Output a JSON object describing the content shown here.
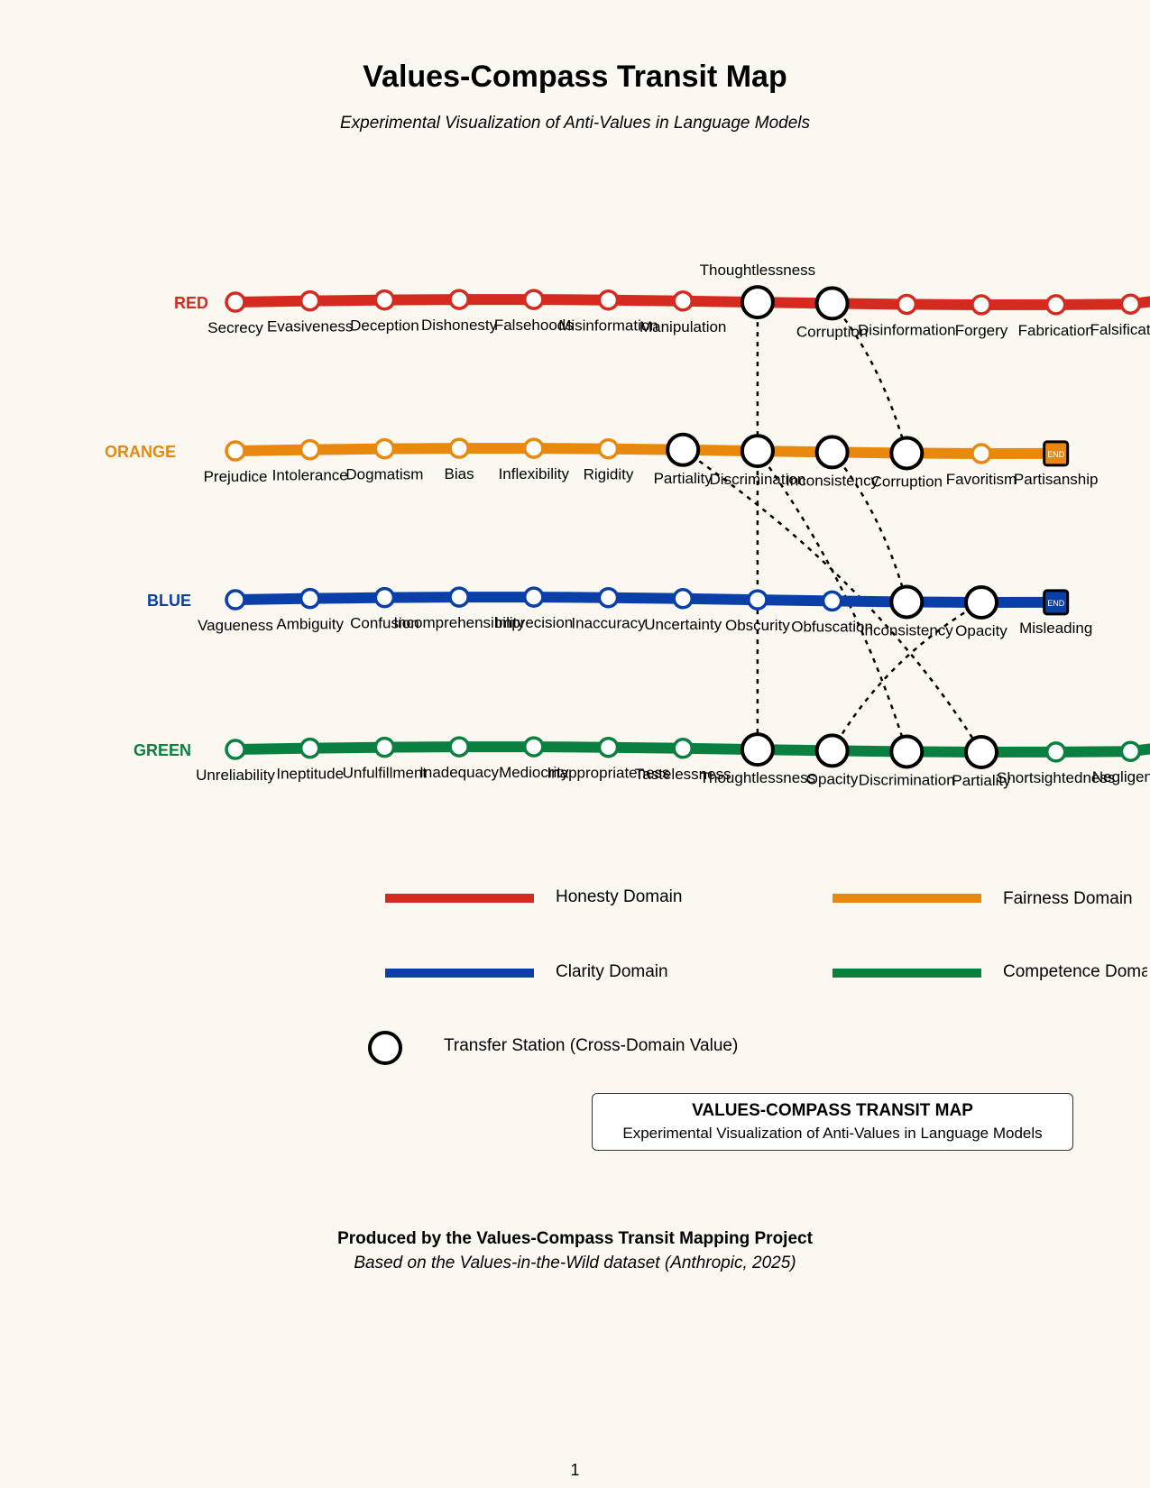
{
  "header": {
    "title": "Values-Compass Transit Map",
    "subtitle": "Experimental Visualization of Anti-Values in Language Models"
  },
  "lines": [
    {
      "id": "red",
      "label": "RED",
      "color": "#d42a20",
      "stations": [
        {
          "name": "Secrecy"
        },
        {
          "name": "Evasiveness"
        },
        {
          "name": "Deception"
        },
        {
          "name": "Dishonesty"
        },
        {
          "name": "Falsehoods"
        },
        {
          "name": "Misinformation"
        },
        {
          "name": "Manipulation"
        },
        {
          "name": "Thoughtlessness",
          "transfer": true,
          "label_above": true
        },
        {
          "name": "Corruption",
          "transfer": true
        },
        {
          "name": "Disinformation"
        },
        {
          "name": "Forgery"
        },
        {
          "name": "Fabrication"
        },
        {
          "name": "Falsification"
        }
      ]
    },
    {
      "id": "orange",
      "label": "ORANGE",
      "color": "#e8880c",
      "end_label": "END",
      "stations": [
        {
          "name": "Prejudice"
        },
        {
          "name": "Intolerance"
        },
        {
          "name": "Dogmatism"
        },
        {
          "name": "Bias"
        },
        {
          "name": "Inflexibility"
        },
        {
          "name": "Rigidity"
        },
        {
          "name": "Partiality",
          "transfer": true
        },
        {
          "name": "Discrimination",
          "transfer": true
        },
        {
          "name": "Inconsistency",
          "transfer": true
        },
        {
          "name": "Corruption",
          "transfer": true
        },
        {
          "name": "Favoritism"
        },
        {
          "name": "Partisanship",
          "terminus": true
        }
      ]
    },
    {
      "id": "blue",
      "label": "BLUE",
      "color": "#0a3fa8",
      "end_label": "END",
      "stations": [
        {
          "name": "Vagueness"
        },
        {
          "name": "Ambiguity"
        },
        {
          "name": "Confusion"
        },
        {
          "name": "Incomprehensibility"
        },
        {
          "name": "Imprecision"
        },
        {
          "name": "Inaccuracy"
        },
        {
          "name": "Uncertainty"
        },
        {
          "name": "Obscurity"
        },
        {
          "name": "Obfuscation"
        },
        {
          "name": "Inconsistency",
          "transfer": true
        },
        {
          "name": "Opacity",
          "transfer": true
        },
        {
          "name": "Misleading",
          "terminus": true
        }
      ]
    },
    {
      "id": "green",
      "label": "GREEN",
      "color": "#0a8040",
      "stations": [
        {
          "name": "Unreliability"
        },
        {
          "name": "Ineptitude"
        },
        {
          "name": "Unfulfillment"
        },
        {
          "name": "Inadequacy"
        },
        {
          "name": "Mediocrity"
        },
        {
          "name": "Inappropriateness"
        },
        {
          "name": "Tastelessness"
        },
        {
          "name": "Thoughtlessness",
          "transfer": true
        },
        {
          "name": "Opacity",
          "transfer": true
        },
        {
          "name": "Discrimination",
          "transfer": true
        },
        {
          "name": "Partiality",
          "transfer": true
        },
        {
          "name": "Shortsightedness"
        },
        {
          "name": "Negligence"
        }
      ]
    }
  ],
  "legend": {
    "honesty": "Honesty Domain",
    "fairness": "Fairness Domain",
    "clarity": "Clarity Domain",
    "competence": "Competence Domain",
    "transfer": "Transfer Station (Cross-Domain Value)"
  },
  "info_box": {
    "heading": "VALUES-COMPASS TRANSIT MAP",
    "subheading": "Experimental Visualization of Anti-Values in Language Models"
  },
  "footer": {
    "credit": "Produced by the Values-Compass Transit Mapping Project",
    "source": "Based on the Values-in-the-Wild dataset (Anthropic, 2025)"
  },
  "page_number": "1"
}
